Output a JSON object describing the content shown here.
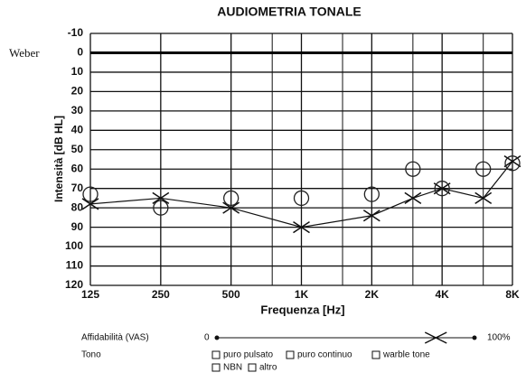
{
  "chart_data": {
    "type": "audiogram",
    "title": "AUDIOMETRIA TONALE",
    "weber_label": "Weber",
    "y_label": "Intensità [dB HL]",
    "x_label": "Frequenza [Hz]",
    "x_log": true,
    "xlim": [
      125,
      8000
    ],
    "xticks": [
      125,
      250,
      500,
      {
        "value": 1000,
        "label": "1K"
      },
      {
        "value": 2000,
        "label": "2K"
      },
      {
        "value": 4000,
        "label": "4K"
      },
      {
        "value": 8000,
        "label": "8K"
      }
    ],
    "x_minor_grid": [
      750,
      1500,
      3000,
      6000
    ],
    "ylim": [
      -10,
      120
    ],
    "y_inverted": true,
    "yticks": [
      -10,
      0,
      10,
      20,
      30,
      40,
      50,
      60,
      70,
      80,
      90,
      100,
      110,
      120
    ],
    "grid": true,
    "weber_line": 0,
    "series": [
      {
        "marker": "x",
        "connected": true,
        "color": "#111111",
        "x": [
          125,
          250,
          500,
          1000,
          2000,
          3000,
          4000,
          6000,
          8000
        ],
        "values": [
          78,
          75,
          80,
          90,
          84,
          75,
          70,
          75,
          56
        ]
      },
      {
        "marker": "o",
        "connected": false,
        "color": "#222222",
        "x": [
          125,
          250,
          500,
          1000,
          2000,
          3000,
          4000,
          6000,
          8000
        ],
        "values": [
          73,
          80,
          75,
          75,
          73,
          60,
          70,
          60,
          57
        ]
      }
    ],
    "vas": {
      "label": "Affidabilità (VAS)",
      "min_label": "0",
      "max_label": "100%",
      "min": 0,
      "max": 100,
      "value": 85
    },
    "tone": {
      "label": "Tono",
      "options": [
        "puro pulsato",
        "puro continuo",
        "warble tone",
        "NBN",
        "altro"
      ]
    }
  }
}
